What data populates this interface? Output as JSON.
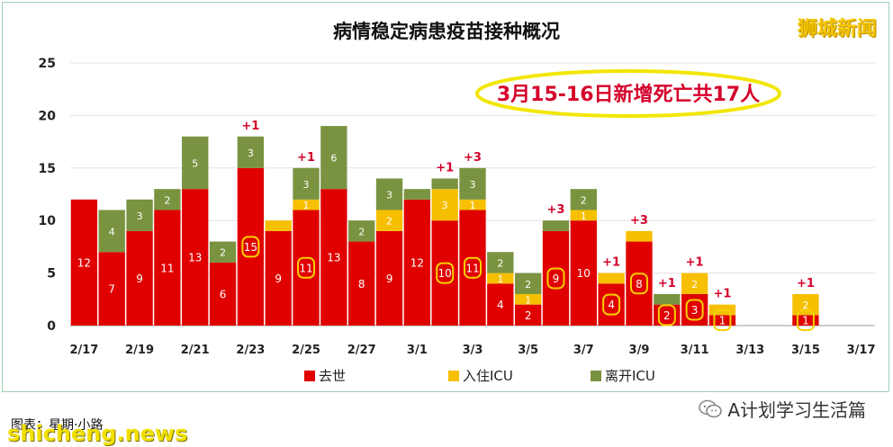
{
  "chart_data": {
    "type": "bar",
    "stacked": true,
    "title": "病情稳定病患疫苗接种概况",
    "ylim": [
      0,
      25
    ],
    "yticks": [
      0,
      5,
      10,
      15,
      20,
      25
    ],
    "grid": true,
    "legend_position": "bottom",
    "categories": [
      "2/17",
      "2/18",
      "2/19",
      "2/20",
      "2/21",
      "2/22",
      "2/23",
      "2/24",
      "2/25",
      "2/26",
      "2/27",
      "2/28",
      "3/1",
      "3/2",
      "3/3",
      "3/4",
      "3/5",
      "3/6",
      "3/7",
      "3/8",
      "3/9",
      "3/10",
      "3/11",
      "3/12",
      "3/13",
      "3/14",
      "3/15",
      "3/16",
      "3/17"
    ],
    "xtick_labels": [
      "2/17",
      "2/19",
      "2/21",
      "2/23",
      "2/25",
      "2/27",
      "3/1",
      "3/3",
      "3/5",
      "3/7",
      "3/9",
      "3/11",
      "3/13",
      "3/15",
      "3/17"
    ],
    "series": [
      {
        "name": "去世",
        "color": "#e00000",
        "values": [
          12,
          7,
          9,
          11,
          13,
          6,
          15,
          9,
          11,
          13,
          8,
          9,
          12,
          10,
          11,
          4,
          2,
          9,
          10,
          4,
          8,
          2,
          3,
          1,
          0,
          0,
          1,
          0,
          0
        ]
      },
      {
        "name": "入住ICU",
        "color": "#f6c000",
        "values": [
          0,
          0,
          0,
          0,
          0,
          0,
          0,
          1,
          1,
          0,
          0,
          2,
          0,
          3,
          1,
          1,
          1,
          0,
          1,
          1,
          1,
          0,
          2,
          1,
          0,
          0,
          2,
          0,
          0
        ]
      },
      {
        "name": "离开ICU",
        "color": "#7a9340",
        "values": [
          0,
          4,
          3,
          2,
          5,
          2,
          3,
          0,
          3,
          6,
          2,
          3,
          1,
          1,
          3,
          2,
          2,
          1,
          2,
          0,
          0,
          1,
          0,
          0,
          0,
          0,
          0,
          0,
          0
        ]
      }
    ],
    "data_labels": {
      "deaths": [
        "12",
        "7",
        "9",
        "11",
        "13",
        "6",
        "15",
        "9",
        "11",
        "13",
        "8",
        "9",
        "12",
        "10",
        "11",
        "4",
        "2",
        "9",
        "10",
        "4",
        "8",
        "2",
        "3",
        "1",
        "",
        "",
        "1",
        "",
        ""
      ],
      "icu": [
        "",
        "",
        "",
        "",
        "",
        "",
        "",
        "",
        "1",
        "",
        "",
        "2",
        "",
        "3",
        "1",
        "1",
        "1",
        "",
        "1",
        "",
        "",
        "",
        "2",
        "",
        "",
        "",
        "2",
        "",
        ""
      ],
      "left_icu": [
        "",
        "4",
        "3",
        "2",
        "5",
        "2",
        "3",
        "",
        "3",
        "6",
        "2",
        "3",
        "",
        "",
        "3",
        "2",
        "2",
        "",
        "2",
        "",
        "",
        "",
        "",
        "",
        "",
        "",
        "",
        "",
        ""
      ]
    },
    "circled_deaths_indices": [
      6,
      8,
      13,
      14,
      17,
      19,
      20,
      21,
      22,
      23,
      26
    ],
    "plus_annotations": [
      {
        "index": 6,
        "text": "+1"
      },
      {
        "index": 8,
        "text": "+1"
      },
      {
        "index": 13,
        "text": "+1"
      },
      {
        "index": 14,
        "text": "+3"
      },
      {
        "index": 17,
        "text": "+3"
      },
      {
        "index": 19,
        "text": "+1"
      },
      {
        "index": 20,
        "text": "+3"
      },
      {
        "index": 21,
        "text": "+1"
      },
      {
        "index": 22,
        "text": "+1"
      },
      {
        "index": 23,
        "text": "+1"
      },
      {
        "index": 26,
        "text": "+1"
      }
    ],
    "callout": "3月15-16日新增死亡共17人"
  },
  "colors": {
    "death": "#e00000",
    "icu": "#f6c000",
    "left_icu": "#7a9340",
    "annotation": "#d4002a",
    "callout_border": "#f2e600"
  },
  "brand": "狮城新闻",
  "footer": {
    "credit": "图表：星期·小路",
    "watermark": "shicheng.news",
    "account": "A计划学习生活篇"
  }
}
